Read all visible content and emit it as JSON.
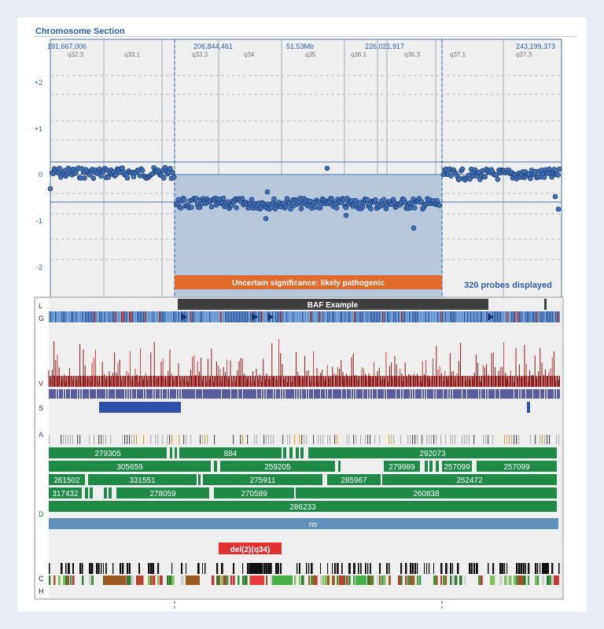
{
  "section_title": "Chromosome Section",
  "coords": [
    "191,667,006",
    "206,844,461",
    "51.53Mb",
    "226,021,917",
    "243,199,373"
  ],
  "bands": [
    "q32.3",
    "q33.1",
    "q33.3",
    "q34",
    "q35",
    "q36.1",
    "q36.3",
    "q37.1",
    "q37.3"
  ],
  "y_ticks": [
    "+2",
    "+1",
    "0",
    "-1",
    "-2"
  ],
  "segment_label": "Uncertain significance: likely pathogenic",
  "probes_label": "320 probes displayed",
  "track_letters": [
    "L",
    "G",
    "V",
    "S",
    "A",
    "D",
    "C",
    "H"
  ],
  "baf_label": "BAF Example",
  "cnv_rows": [
    [
      "279305",
      "884",
      "292073"
    ],
    [
      "305659",
      "259205",
      "279989",
      "257099",
      "257099"
    ],
    [
      "261502",
      "331551",
      "275911",
      "285967",
      "252472"
    ],
    [
      "317432",
      "278059",
      "270589",
      "260838"
    ],
    [
      "286233"
    ]
  ],
  "ns_label": "ns",
  "del_label": "del(2)(q34)",
  "colors": {
    "title": "#2b5fa8",
    "dot": "#3f6fb5",
    "shade": "#b6c9dc",
    "segment": "#e06a2c",
    "cnv": "#1e8a45",
    "ns": "#5f8fbb",
    "del": "#e03030"
  }
}
